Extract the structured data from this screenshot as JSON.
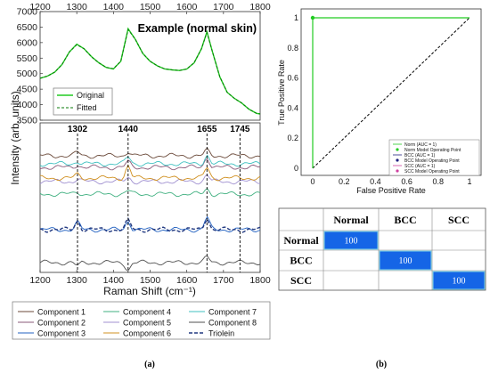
{
  "panel_a": {
    "top": {
      "title": "Example (normal skin)",
      "yticks": [
        "3500",
        "4000",
        "4500",
        "5000",
        "5500",
        "6000",
        "6500",
        "7000"
      ],
      "xticks": [
        "1200",
        "1300",
        "1400",
        "1500",
        "1600",
        "1700",
        "1800"
      ],
      "legend": [
        "Original",
        "Fitted"
      ]
    },
    "bottom": {
      "peaks": [
        "1302",
        "1440",
        "1655",
        "1745"
      ],
      "xticks": [
        "1200",
        "1300",
        "1400",
        "1500",
        "1600",
        "1700",
        "1800"
      ]
    },
    "ylabel": "Intensity (arb. units)",
    "xlabel": "Raman Shift (cm⁻¹)",
    "legend": [
      "Component 1",
      "Component 4",
      "Component 7",
      "Component 2",
      "Component 5",
      "Component 8",
      "Component 3",
      "Component 6",
      "Triolein"
    ],
    "caption": "(a)"
  },
  "panel_b": {
    "roc": {
      "xlabel": "False Positive Rate",
      "ylabel": "True Positive Rate",
      "xticks": [
        "0",
        "0.2",
        "0.4",
        "0.6",
        "0.8",
        "1"
      ],
      "yticks": [
        "0",
        "0.2",
        "0.4",
        "0.6",
        "0.8",
        "1"
      ],
      "legend": [
        "Norm (AUC = 1)",
        "Norm Model Operating Point",
        "BCC (AUC = 1)",
        "BCC Model Operating Point",
        "SCC (AUC = 1)",
        "SCC Model Operating Point"
      ]
    },
    "matrix": {
      "columns": [
        "Normal",
        "BCC",
        "SCC"
      ],
      "rows": [
        "Normal",
        "BCC",
        "SCC"
      ],
      "diagonal": [
        "100",
        "100",
        "100"
      ]
    },
    "caption": "(b)"
  },
  "chart_data": [
    {
      "type": "line",
      "title": "Example (normal skin)",
      "xlabel": "Raman Shift (cm⁻¹)",
      "ylabel": "Intensity (arb. units)",
      "xlim": [
        1200,
        1800
      ],
      "ylim": [
        3500,
        7000
      ],
      "x": [
        1200,
        1220,
        1240,
        1260,
        1280,
        1300,
        1320,
        1340,
        1360,
        1380,
        1400,
        1420,
        1440,
        1460,
        1480,
        1500,
        1520,
        1540,
        1560,
        1580,
        1600,
        1620,
        1640,
        1655,
        1670,
        1690,
        1710,
        1730,
        1750,
        1770,
        1790,
        1800
      ],
      "series": [
        {
          "name": "Original",
          "values": [
            4850,
            4920,
            5050,
            5300,
            5700,
            5950,
            5800,
            5550,
            5350,
            5200,
            5150,
            5400,
            6450,
            6100,
            5650,
            5400,
            5250,
            5150,
            5120,
            5100,
            5150,
            5350,
            5800,
            6350,
            5700,
            4900,
            4400,
            4200,
            4050,
            3850,
            3720,
            3700
          ]
        },
        {
          "name": "Fitted",
          "values": [
            4850,
            4920,
            5050,
            5300,
            5700,
            5930,
            5800,
            5540,
            5350,
            5200,
            5160,
            5400,
            6420,
            6100,
            5650,
            5400,
            5250,
            5150,
            5120,
            5100,
            5150,
            5350,
            5800,
            6320,
            5700,
            4900,
            4400,
            4200,
            4050,
            3850,
            3720,
            3700
          ]
        }
      ],
      "legend_position": "bottom-left"
    },
    {
      "type": "line",
      "xlim": [
        1200,
        1800
      ],
      "annotations": [
        "1302",
        "1440",
        "1655",
        "1745"
      ],
      "series": [
        {
          "name": "Component 1"
        },
        {
          "name": "Component 2"
        },
        {
          "name": "Component 3"
        },
        {
          "name": "Component 4"
        },
        {
          "name": "Component 5"
        },
        {
          "name": "Component 6"
        },
        {
          "name": "Component 7"
        },
        {
          "name": "Component 8"
        },
        {
          "name": "Triolein"
        }
      ]
    },
    {
      "type": "line",
      "xlabel": "False Positive Rate",
      "ylabel": "True Positive Rate",
      "xlim": [
        0,
        1
      ],
      "ylim": [
        0,
        1
      ],
      "series": [
        {
          "name": "Norm (AUC = 1)",
          "x": [
            0,
            0,
            1
          ],
          "y": [
            0,
            1,
            1
          ]
        },
        {
          "name": "BCC (AUC = 1)",
          "x": [
            0,
            0,
            1
          ],
          "y": [
            0,
            1,
            1
          ]
        },
        {
          "name": "SCC (AUC = 1)",
          "x": [
            0,
            0,
            1
          ],
          "y": [
            0,
            1,
            1
          ]
        }
      ],
      "operating_points": [
        [
          0,
          1
        ]
      ],
      "chance_line": [
        [
          0,
          0
        ],
        [
          1,
          1
        ]
      ],
      "legend_position": "bottom-right"
    },
    {
      "type": "table",
      "columns": [
        "Normal",
        "BCC",
        "SCC"
      ],
      "rows": [
        "Normal",
        "BCC",
        "SCC"
      ],
      "values": [
        [
          100,
          null,
          null
        ],
        [
          null,
          100,
          null
        ],
        [
          null,
          null,
          100
        ]
      ]
    }
  ],
  "colors": {
    "green": "#22cc22",
    "matrix_fill": "#1565e6",
    "components": [
      "#6b4a3a",
      "#8a5a7a",
      "#2060c0",
      "#40b080",
      "#a090d0",
      "#d09020",
      "#40c0c0",
      "#505050",
      "#203880"
    ]
  }
}
